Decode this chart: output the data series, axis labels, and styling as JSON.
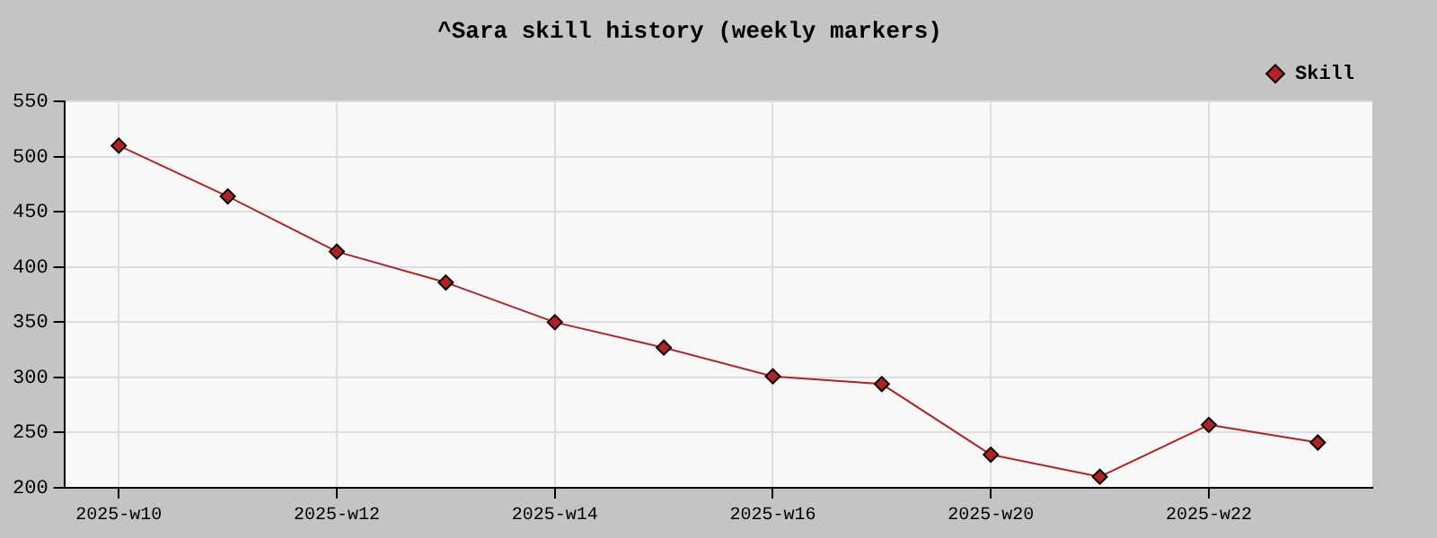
{
  "chart_data": {
    "type": "line",
    "title": "^Sara skill history (weekly markers)",
    "categories": [
      "2025-w10",
      null,
      "2025-w12",
      null,
      "2025-w14",
      null,
      "2025-w16",
      null,
      "2025-w20",
      null,
      "2025-w22",
      null
    ],
    "series": [
      {
        "name": "Skill",
        "color": "#b22222",
        "values": [
          510,
          464,
          414,
          386,
          350,
          327,
          301,
          294,
          230,
          210,
          257,
          241
        ]
      }
    ],
    "ylim": [
      200,
      550
    ],
    "yticks": [
      200,
      250,
      300,
      350,
      400,
      450,
      500,
      550
    ],
    "grid": true,
    "legend": "top right",
    "marker": "diamond",
    "line_style": "solid"
  }
}
